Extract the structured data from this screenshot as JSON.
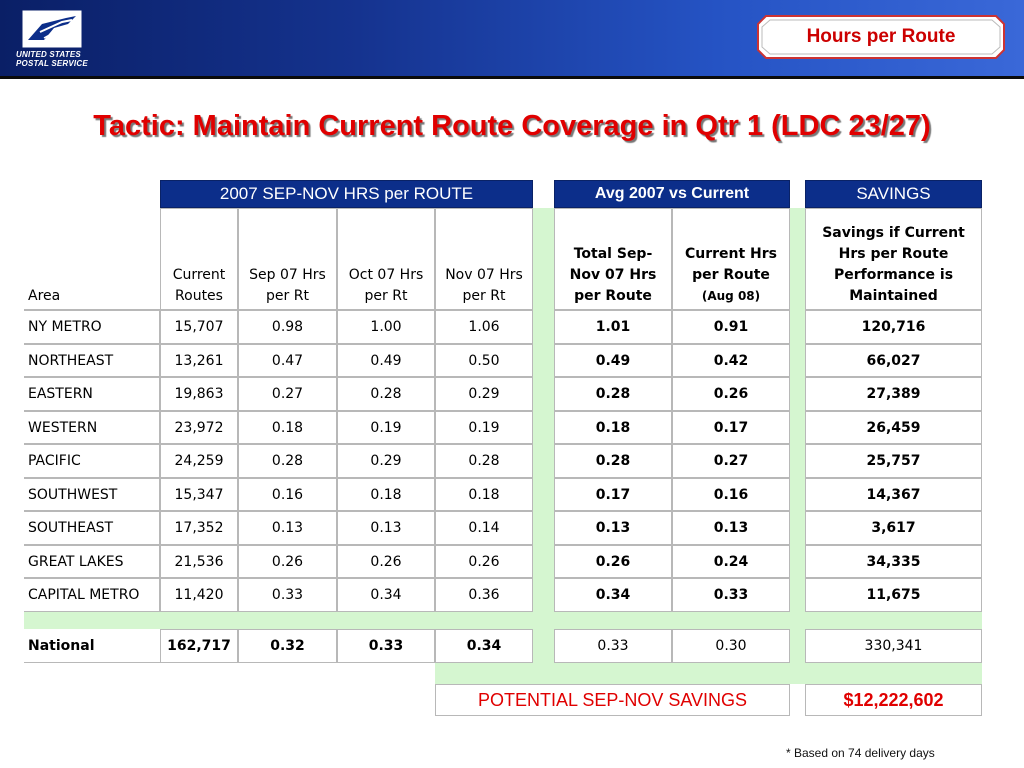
{
  "header": {
    "logo_line1": "UNITED STATES",
    "logo_line2": "POSTAL SERVICE",
    "badge_label": "Hours per Route",
    "logo_icon": "eagle-icon"
  },
  "title": "Tactic: Maintain Current Route Coverage in Qtr 1 (LDC 23/27)",
  "table": {
    "group_headers": {
      "hrs": "2007 SEP-NOV HRS per ROUTE",
      "avg": "Avg 2007 vs Current",
      "savings": "SAVINGS"
    },
    "columns": {
      "area": "Area",
      "current_routes": [
        "Current",
        "Routes"
      ],
      "sep": [
        "Sep 07 Hrs",
        "per Rt"
      ],
      "oct": [
        "Oct 07 Hrs",
        "per Rt"
      ],
      "nov": [
        "Nov 07 Hrs",
        "per Rt"
      ],
      "total": [
        "Total Sep-",
        "Nov 07 Hrs",
        "per Route"
      ],
      "current_hrs": [
        "Current Hrs",
        "per Route"
      ],
      "current_hrs_note": "(Aug 08)",
      "savings": [
        "Savings if Current",
        "Hrs per Route",
        "Performance is",
        "Maintained"
      ]
    },
    "rows": [
      {
        "area": "NY METRO",
        "routes": "15,707",
        "sep": "0.98",
        "oct": "1.00",
        "nov": "1.06",
        "total": "1.01",
        "current": "0.91",
        "savings": "120,716"
      },
      {
        "area": "NORTHEAST",
        "routes": "13,261",
        "sep": "0.47",
        "oct": "0.49",
        "nov": "0.50",
        "total": "0.49",
        "current": "0.42",
        "savings": "66,027"
      },
      {
        "area": "EASTERN",
        "routes": "19,863",
        "sep": "0.27",
        "oct": "0.28",
        "nov": "0.29",
        "total": "0.28",
        "current": "0.26",
        "savings": "27,389"
      },
      {
        "area": "WESTERN",
        "routes": "23,972",
        "sep": "0.18",
        "oct": "0.19",
        "nov": "0.19",
        "total": "0.18",
        "current": "0.17",
        "savings": "26,459"
      },
      {
        "area": "PACIFIC",
        "routes": "24,259",
        "sep": "0.28",
        "oct": "0.29",
        "nov": "0.28",
        "total": "0.28",
        "current": "0.27",
        "savings": "25,757"
      },
      {
        "area": "SOUTHWEST",
        "routes": "15,347",
        "sep": "0.16",
        "oct": "0.18",
        "nov": "0.18",
        "total": "0.17",
        "current": "0.16",
        "savings": "14,367"
      },
      {
        "area": "SOUTHEAST",
        "routes": "17,352",
        "sep": "0.13",
        "oct": "0.13",
        "nov": "0.14",
        "total": "0.13",
        "current": "0.13",
        "savings": "3,617"
      },
      {
        "area": "GREAT LAKES",
        "routes": "21,536",
        "sep": "0.26",
        "oct": "0.26",
        "nov": "0.26",
        "total": "0.26",
        "current": "0.24",
        "savings": "34,335"
      },
      {
        "area": "CAPITAL METRO",
        "routes": "11,420",
        "sep": "0.33",
        "oct": "0.34",
        "nov": "0.36",
        "total": "0.34",
        "current": "0.33",
        "savings": "11,675"
      }
    ],
    "national": {
      "area": "National",
      "routes": "162,717",
      "sep": "0.32",
      "oct": "0.33",
      "nov": "0.34",
      "total": "0.33",
      "current": "0.30",
      "savings": "330,341"
    },
    "potential_label": "POTENTIAL SEP-NOV SAVINGS",
    "potential_value": "$12,222,602"
  },
  "footnote": "* Based on 74 delivery days",
  "colors": {
    "header_blue": "#0c2e8a",
    "title_red": "#e00000",
    "spacer_green": "#d5f6d0"
  }
}
